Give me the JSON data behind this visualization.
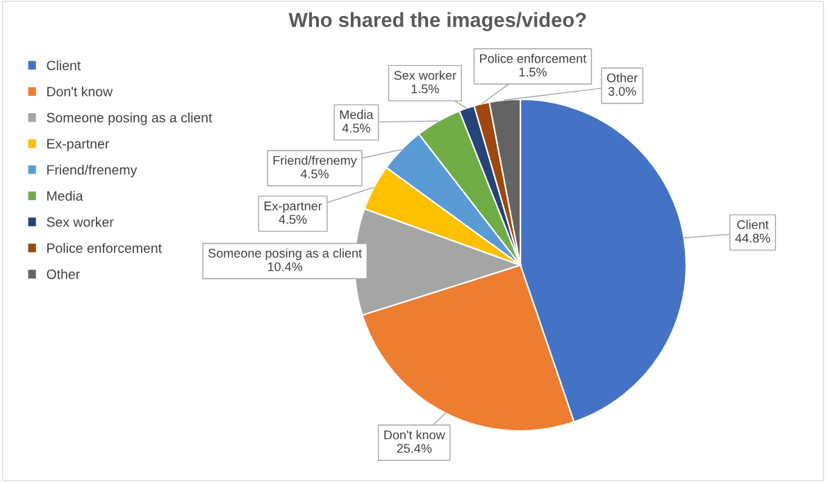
{
  "chart_data": {
    "type": "pie",
    "title": "Who shared the images/video?",
    "categories": [
      "Client",
      "Don't know",
      "Someone posing as a client",
      "Ex-partner",
      "Friend/frenemy",
      "Media",
      "Sex worker",
      "Police enforcement",
      "Other"
    ],
    "values": [
      44.8,
      25.4,
      10.4,
      4.5,
      4.5,
      4.5,
      1.5,
      1.5,
      3.0
    ],
    "value_labels": [
      "44.8%",
      "25.4%",
      "10.4%",
      "4.5%",
      "4.5%",
      "4.5%",
      "1.5%",
      "1.5%",
      "3.0%"
    ],
    "colors": [
      "#4472c4",
      "#ed7d31",
      "#a5a5a5",
      "#ffc000",
      "#5b9bd5",
      "#70ad47",
      "#264478",
      "#9e480e",
      "#636363"
    ],
    "legend": "left"
  }
}
